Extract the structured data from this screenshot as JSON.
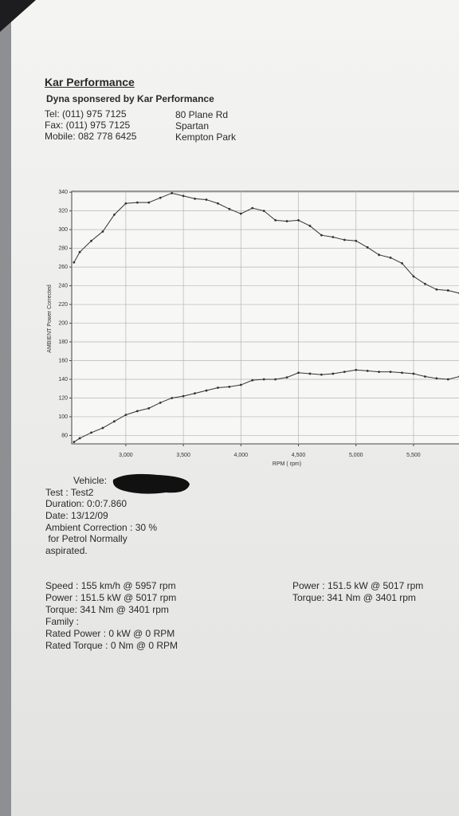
{
  "header": {
    "title": "Kar Performance",
    "subtitle": "Dyna sponsered by Kar Performance",
    "contact": [
      "Tel: (011) 975 7125",
      "Fax: (011) 975 7125",
      "Mobile: 082 778 6425"
    ],
    "address": [
      "80 Plane Rd",
      "Spartan",
      "Kempton Park"
    ]
  },
  "chart_data": {
    "type": "line",
    "ylabel": "AMBIENT Power Corrected",
    "xlabel": "RPM ( rpm)",
    "x": [
      2550,
      2600,
      2700,
      2800,
      2900,
      3000,
      3100,
      3200,
      3300,
      3400,
      3500,
      3600,
      3700,
      3800,
      3900,
      4000,
      4100,
      4200,
      4300,
      4400,
      4500,
      4600,
      4700,
      4800,
      4900,
      5000,
      5100,
      5200,
      5300,
      5400,
      5500,
      5600,
      5700,
      5800,
      5900
    ],
    "series": [
      {
        "color": "#333333",
        "values": [
          265,
          276,
          288,
          298,
          316,
          328,
          329,
          329,
          334,
          339,
          336,
          333,
          332,
          328,
          322,
          317,
          323,
          320,
          310,
          309,
          310,
          304,
          294,
          292,
          289,
          288,
          281,
          273,
          270,
          264,
          250,
          242,
          236,
          235,
          232
        ]
      },
      {
        "color": "#333333",
        "values": [
          73,
          77,
          83,
          88,
          95,
          102,
          106,
          109,
          115,
          120,
          122,
          125,
          128,
          131,
          132,
          134,
          139,
          140,
          140,
          142,
          147,
          146,
          145,
          146,
          148,
          150,
          149,
          148,
          148,
          147,
          146,
          143,
          141,
          140,
          143
        ]
      }
    ],
    "xlim": [
      2530,
      5895
    ],
    "ylim": [
      71,
      341
    ],
    "xticks": [
      {
        "value": 3000,
        "label": "3,000"
      },
      {
        "value": 3500,
        "label": "3,500"
      },
      {
        "value": 4000,
        "label": "4,000"
      },
      {
        "value": 4500,
        "label": "4,500"
      },
      {
        "value": 5000,
        "label": "5,000"
      },
      {
        "value": 5500,
        "label": "5,500"
      }
    ],
    "yticks": [
      80,
      100,
      120,
      140,
      160,
      180,
      200,
      220,
      240,
      260,
      280,
      300,
      320,
      340
    ],
    "grid": true
  },
  "test": {
    "vehicle": "Vehicle:",
    "lines": [
      "Test    : Test2",
      "Duration: 0:0:7.860",
      "Date: 13/12/09",
      "Ambient Correction : 30 %",
      " for Petrol Normally",
      "aspirated."
    ]
  },
  "summary": {
    "left": [
      "Speed : 155 km/h @ 5957 rpm",
      "Power : 151.5 kW @ 5017 rpm",
      "Torque: 341 Nm @ 3401 rpm",
      "Family :",
      "Rated Power : 0 kW @ 0 RPM",
      "Rated Torque : 0 Nm @ 0 RPM"
    ],
    "right": [
      "Power : 151.5 kW @ 5017 rpm",
      "Torque: 341 Nm @ 3401 rpm"
    ]
  }
}
